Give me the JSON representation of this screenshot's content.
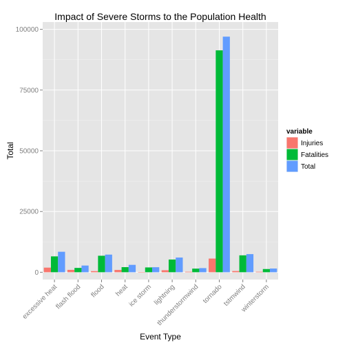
{
  "chart_data": {
    "type": "bar",
    "title": "Impact of Severe Storms to the Population Health",
    "xlabel": "Event Type",
    "ylabel": "Total",
    "categories": [
      "excessive heat",
      "flash flood",
      "flood",
      "heat",
      "ice storm",
      "lightning",
      "thunderstormwind",
      "tornado",
      "tstmwind",
      "winterstorm"
    ],
    "series": [
      {
        "name": "Injuries",
        "color": "#F8766D",
        "values": [
          1900,
          980,
          470,
          940,
          90,
          820,
          210,
          5630,
          500,
          210
        ]
      },
      {
        "name": "Fatalities",
        "color": "#00BA38",
        "values": [
          6530,
          1780,
          6790,
          2100,
          1980,
          5230,
          1490,
          91350,
          6960,
          1320
        ]
      },
      {
        "name": "Total",
        "color": "#619CFF",
        "values": [
          8430,
          2760,
          7260,
          3040,
          2070,
          6050,
          1700,
          96980,
          7460,
          1530
        ]
      }
    ],
    "ylim": [
      -3000,
      103000
    ],
    "yticks": [
      0,
      25000,
      50000,
      75000,
      100000
    ],
    "grid": true,
    "legend": {
      "title": "variable",
      "position": "right"
    }
  }
}
